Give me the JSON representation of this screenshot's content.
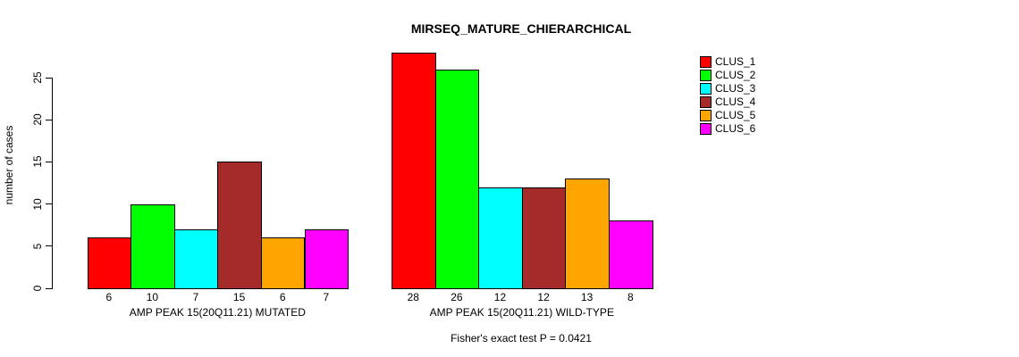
{
  "chart_data": {
    "type": "bar",
    "title": "MIRSEQ_MATURE_CHIERARCHICAL",
    "ylabel": "number of cases",
    "ylim": [
      0,
      28
    ],
    "yticks": [
      0,
      5,
      10,
      15,
      20,
      25
    ],
    "grid": false,
    "legend_position": "right",
    "categories": [
      "AMP PEAK 15(20Q11.21) MUTATED",
      "AMP PEAK 15(20Q11.21) WILD-TYPE"
    ],
    "series": [
      {
        "name": "CLUS_1",
        "color": "#FF0000",
        "values": [
          6,
          28
        ]
      },
      {
        "name": "CLUS_2",
        "color": "#00FF00",
        "values": [
          10,
          26
        ]
      },
      {
        "name": "CLUS_3",
        "color": "#00FFFF",
        "values": [
          7,
          12
        ]
      },
      {
        "name": "CLUS_4",
        "color": "#A52A2A",
        "values": [
          15,
          12
        ]
      },
      {
        "name": "CLUS_5",
        "color": "#FFA500",
        "values": [
          6,
          13
        ]
      },
      {
        "name": "CLUS_6",
        "color": "#FF00FF",
        "values": [
          7,
          8
        ]
      }
    ],
    "bar_value_labels": true,
    "annotation": "Fisher's exact test P = 0.0421",
    "axis_color": "#000000",
    "background_color": "#FFFFFF"
  }
}
